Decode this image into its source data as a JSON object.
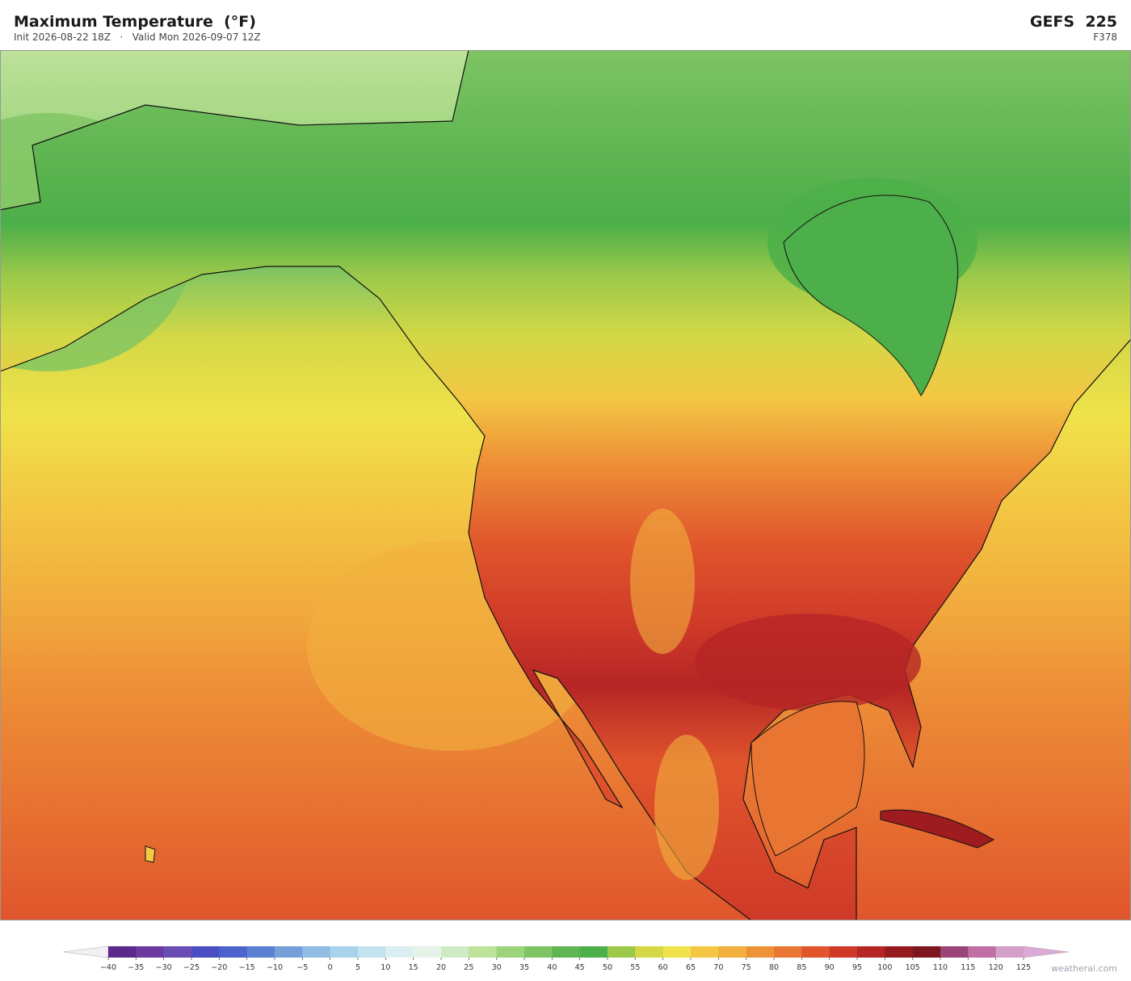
{
  "header": {
    "title": "Maximum Temperature  (°F)",
    "subtitle": "Init 2026-08-22 18Z   ·   Valid Mon 2026-09-07 12Z",
    "model": "GEFS  225",
    "forecast_hour": "F378"
  },
  "colorbar": {
    "ticks": [
      {
        "value": -40,
        "label": "−40"
      },
      {
        "value": -35,
        "label": "−35"
      },
      {
        "value": -30,
        "label": "−30"
      },
      {
        "value": -25,
        "label": "−25"
      },
      {
        "value": -20,
        "label": "−20"
      },
      {
        "value": -15,
        "label": "−15"
      },
      {
        "value": -10,
        "label": "−10"
      },
      {
        "value": -5,
        "label": "−5"
      },
      0,
      5,
      10,
      15,
      20,
      25,
      30,
      35,
      40,
      45,
      50,
      55,
      60,
      65,
      70,
      75,
      80,
      85,
      90,
      95,
      100,
      105,
      110,
      115,
      120,
      125
    ],
    "colors": [
      "#5a2a8a",
      "#6b3a9f",
      "#6a4db3",
      "#4a4ec2",
      "#4d63cc",
      "#5b82d2",
      "#76a0da",
      "#90bce3",
      "#a9d2ec",
      "#c4e3f0",
      "#dbeff3",
      "#e6f4e8",
      "#d0ebc4",
      "#bde29a",
      "#9dd47b",
      "#7ec463",
      "#5fb552",
      "#4caf49",
      "#9cc94a",
      "#d4d846",
      "#f0e24a",
      "#f3c743",
      "#f2b03e",
      "#ee9238",
      "#e87632",
      "#e0552c",
      "#cf3a28",
      "#b52525",
      "#961b1e",
      "#7e1620",
      "#9a4478",
      "#bf6fa5",
      "#d39ec8"
    ],
    "under_color": "#f2f0f5",
    "over_color": "#dcaad6"
  },
  "watermark": "weatherai.com"
}
